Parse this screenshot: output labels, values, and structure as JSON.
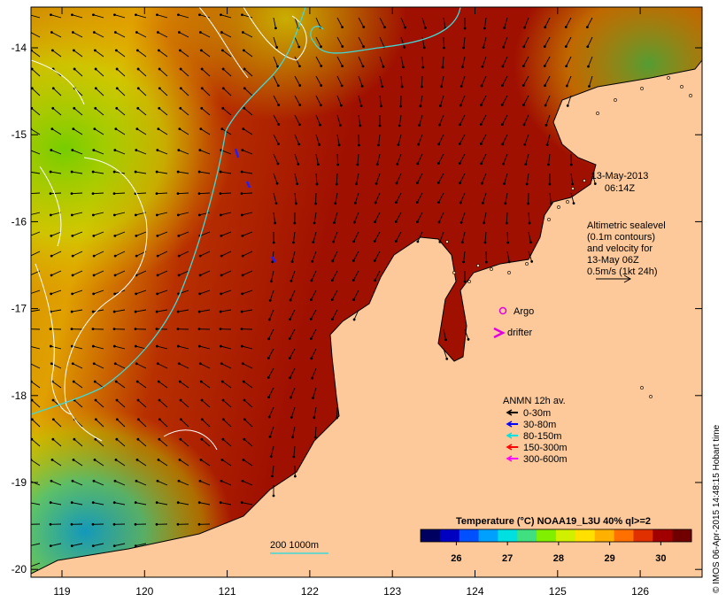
{
  "map": {
    "timestamp": {
      "date": "13-May-2013",
      "time": "06:14Z"
    },
    "altimetry_note": [
      "Altimetric sealevel",
      "(0.1m contours)",
      "and velocity for",
      "13-May 06Z",
      "0.5m/s (1kt 24h)"
    ],
    "symbols": [
      {
        "name": "Argo",
        "color": "#e000e0",
        "shape": "circle"
      },
      {
        "name": "drifter",
        "color": "#e000e0",
        "shape": "chevron"
      }
    ],
    "current_meter_legend": {
      "title": "ANMN 12h av.",
      "items": [
        {
          "label": "0-30m",
          "color": "#000000"
        },
        {
          "label": "30-80m",
          "color": "#0000ff"
        },
        {
          "label": "80-150m",
          "color": "#00e0e0"
        },
        {
          "label": "150-300m",
          "color": "#ff0000"
        },
        {
          "label": "300-600m",
          "color": "#ff00ff"
        }
      ]
    },
    "isobath_label": "200  1000m",
    "colorbar": {
      "title": "Temperature (°C) NOAA19_L3U 40% ql>=2",
      "ticks": [
        "26",
        "27",
        "28",
        "29",
        "30"
      ],
      "range": [
        25.3,
        30.6
      ],
      "colors": [
        "#000060",
        "#0000c0",
        "#0050ff",
        "#00a0ff",
        "#00e0e0",
        "#40e080",
        "#80f000",
        "#d0f000",
        "#ffe000",
        "#ffb000",
        "#ff7000",
        "#e03000",
        "#a00000",
        "#700000"
      ]
    },
    "x_ticks": [
      "119",
      "120",
      "121",
      "122",
      "123",
      "124",
      "125",
      "126"
    ],
    "y_ticks": [
      "-14",
      "-15",
      "-16",
      "-17",
      "-18",
      "-19",
      "-20"
    ],
    "colors": {
      "land": "#fdc99a",
      "sea_warm": "#a81400",
      "isobath": "#40d8d8"
    },
    "credit": "© IMOS 06-Apr-2015 14:48:15 Hobart time"
  }
}
